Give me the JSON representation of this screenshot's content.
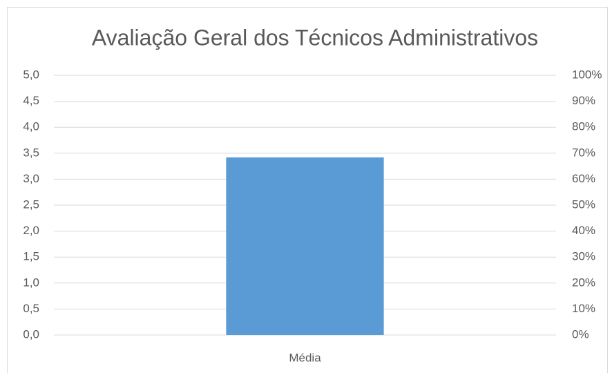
{
  "chart_data": {
    "type": "bar",
    "title": "Avaliação Geral dos Técnicos Administrativos",
    "categories": [
      "Média"
    ],
    "values": [
      3.42
    ],
    "color": "#5b9bd5",
    "ylim": [
      0,
      5
    ],
    "yticks": [
      {
        "value": 0,
        "label": "0,0"
      },
      {
        "value": 0.5,
        "label": "0,5"
      },
      {
        "value": 1,
        "label": "1,0"
      },
      {
        "value": 1.5,
        "label": "1,5"
      },
      {
        "value": 2,
        "label": "2,0"
      },
      {
        "value": 2.5,
        "label": "2,5"
      },
      {
        "value": 3,
        "label": "3,0"
      },
      {
        "value": 3.5,
        "label": "3,5"
      },
      {
        "value": 4,
        "label": "4,0"
      },
      {
        "value": 4.5,
        "label": "4,5"
      },
      {
        "value": 5,
        "label": "5,0"
      }
    ],
    "y2lim": [
      0,
      100
    ],
    "y2ticks": [
      {
        "value": 0,
        "label": "0%"
      },
      {
        "value": 10,
        "label": "10%"
      },
      {
        "value": 20,
        "label": "20%"
      },
      {
        "value": 30,
        "label": "30%"
      },
      {
        "value": 40,
        "label": "40%"
      },
      {
        "value": 50,
        "label": "50%"
      },
      {
        "value": 60,
        "label": "60%"
      },
      {
        "value": 70,
        "label": "70%"
      },
      {
        "value": 80,
        "label": "80%"
      },
      {
        "value": 90,
        "label": "90%"
      },
      {
        "value": 100,
        "label": "100%"
      }
    ],
    "grid": true
  }
}
